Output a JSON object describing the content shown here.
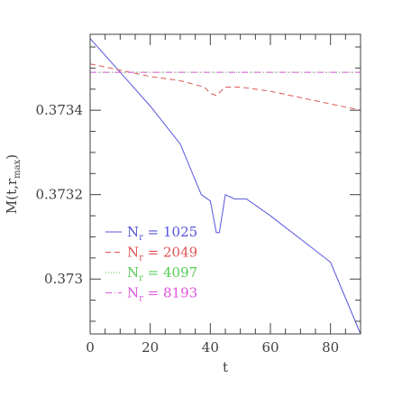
{
  "chart_data": {
    "type": "line",
    "title": "",
    "xlabel": "t",
    "ylabel": "M(t,r",
    "ylabel_sub": "max",
    "ylabel_close": ")",
    "xlim": [
      0,
      90
    ],
    "ylim": [
      0.37287,
      0.37358
    ],
    "x_ticks": [
      {
        "value": 0,
        "label": "0"
      },
      {
        "value": 20,
        "label": "20"
      },
      {
        "value": 40,
        "label": "40"
      },
      {
        "value": 60,
        "label": "60"
      },
      {
        "value": 80,
        "label": "80"
      }
    ],
    "y_ticks": [
      {
        "value": 0.373,
        "label": "0.373"
      },
      {
        "value": 0.3732,
        "label": "0.3732"
      },
      {
        "value": 0.3734,
        "label": "0.3734"
      }
    ],
    "x_minor_step": 5,
    "y_minor_step": 5e-05,
    "grid": false,
    "legend_position": "bottom-left",
    "series": [
      {
        "name": "N",
        "name_sub": "r",
        "name_value": " = 1025",
        "color": "#5555dd",
        "dash": "",
        "points": [
          [
            0,
            0.37357
          ],
          [
            10,
            0.37349
          ],
          [
            20,
            0.37341
          ],
          [
            30,
            0.37332
          ],
          [
            37,
            0.3732
          ],
          [
            40,
            0.373185
          ],
          [
            42,
            0.37311
          ],
          [
            43,
            0.37311
          ],
          [
            45,
            0.3732
          ],
          [
            48,
            0.37319
          ],
          [
            52,
            0.37319
          ],
          [
            60,
            0.37315
          ],
          [
            70,
            0.373095
          ],
          [
            80,
            0.37304
          ],
          [
            90,
            0.37287
          ]
        ]
      },
      {
        "name": "N",
        "name_sub": "r",
        "name_value": " = 2049",
        "color": "#dd5555",
        "dash": "6,4",
        "points": [
          [
            0,
            0.37351
          ],
          [
            10,
            0.373495
          ],
          [
            20,
            0.37348
          ],
          [
            30,
            0.37347
          ],
          [
            38,
            0.373455
          ],
          [
            40,
            0.37344
          ],
          [
            42,
            0.373435
          ],
          [
            45,
            0.373455
          ],
          [
            50,
            0.373455
          ],
          [
            60,
            0.373445
          ],
          [
            70,
            0.37343
          ],
          [
            80,
            0.373415
          ],
          [
            90,
            0.3734
          ]
        ]
      },
      {
        "name": "N",
        "name_sub": "r",
        "name_value": " = 4097",
        "color": "#55cc55",
        "dash": "1,2",
        "points": [
          [
            0,
            0.37349
          ],
          [
            45,
            0.37349
          ],
          [
            90,
            0.37349
          ]
        ]
      },
      {
        "name": "N",
        "name_sub": "r",
        "name_value": " = 8193",
        "color": "#dd55dd",
        "dash": "7,3,1,3",
        "points": [
          [
            0,
            0.37349
          ],
          [
            45,
            0.37349
          ],
          [
            90,
            0.37349
          ]
        ]
      }
    ]
  }
}
